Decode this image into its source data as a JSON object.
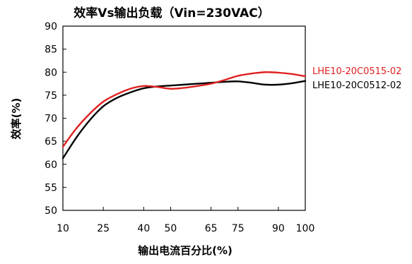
{
  "chart_data": {
    "type": "line",
    "title": "效率Vs输出负载（Vin=230VAC）",
    "xlabel": "输出电流百分比(%)",
    "ylabel": "效率(%)",
    "xlim": [
      10,
      100
    ],
    "ylim": [
      50,
      90
    ],
    "xticks": [
      10,
      25,
      40,
      50,
      65,
      75,
      90,
      100
    ],
    "yticks": [
      50,
      55,
      60,
      65,
      70,
      75,
      80,
      85,
      90
    ],
    "grid": false,
    "legend_position": "right",
    "series": [
      {
        "name": "LHE10-20C0515-02",
        "color": "#e02020",
        "x": [
          10,
          15,
          20,
          25,
          30,
          35,
          40,
          45,
          50,
          55,
          60,
          65,
          70,
          75,
          80,
          85,
          90,
          95,
          100
        ],
        "y": [
          63.8,
          67.8,
          71.0,
          73.6,
          75.2,
          76.4,
          77.0,
          76.8,
          76.4,
          76.6,
          77.0,
          77.5,
          78.3,
          79.2,
          79.7,
          80.0,
          79.9,
          79.6,
          79.1
        ]
      },
      {
        "name": "LHE10-20C0512-02",
        "color": "#000000",
        "x": [
          10,
          15,
          20,
          25,
          30,
          35,
          40,
          45,
          50,
          55,
          60,
          65,
          70,
          75,
          80,
          85,
          90,
          95,
          100
        ],
        "y": [
          61.3,
          65.8,
          69.6,
          72.6,
          74.4,
          75.6,
          76.5,
          76.9,
          77.1,
          77.3,
          77.5,
          77.7,
          77.9,
          78.0,
          77.7,
          77.3,
          77.3,
          77.6,
          78.1
        ]
      }
    ]
  }
}
